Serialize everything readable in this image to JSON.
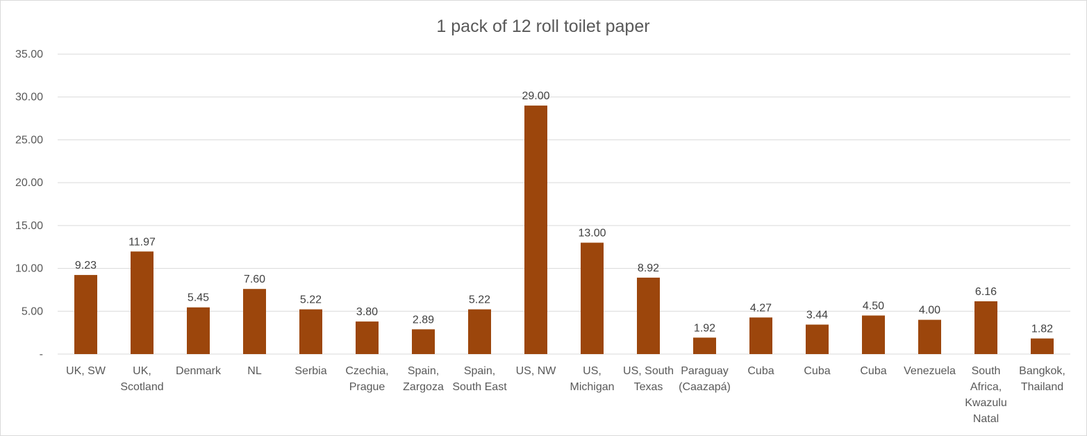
{
  "chart_data": {
    "type": "bar",
    "title": "1 pack of 12 roll toilet paper",
    "xlabel": "",
    "ylabel": "",
    "ylim": [
      0,
      35
    ],
    "yticks": [
      0,
      5,
      10,
      15,
      20,
      25,
      30,
      35
    ],
    "ytick_labels": [
      "-",
      "5.00",
      "10.00",
      "15.00",
      "20.00",
      "25.00",
      "30.00",
      "35.00"
    ],
    "grid": true,
    "legend": "none",
    "bar_color": "#9c460c",
    "categories": [
      [
        "UK, SW"
      ],
      [
        "UK,",
        "Scotland"
      ],
      [
        "Denmark"
      ],
      [
        "NL"
      ],
      [
        "Serbia"
      ],
      [
        "Czechia,",
        "Prague"
      ],
      [
        "Spain,",
        "Zargoza"
      ],
      [
        "Spain,",
        "South East"
      ],
      [
        "US, NW"
      ],
      [
        "US,",
        "Michigan"
      ],
      [
        "US, South",
        "Texas"
      ],
      [
        "Paraguay",
        "(Caazapá)"
      ],
      [
        "Cuba"
      ],
      [
        "Cuba"
      ],
      [
        "Cuba"
      ],
      [
        "Venezuela"
      ],
      [
        "South",
        "Africa,",
        "Kwazulu",
        "Natal"
      ],
      [
        "Bangkok,",
        "Thailand"
      ]
    ],
    "values": [
      9.23,
      11.97,
      5.45,
      7.6,
      5.22,
      3.8,
      2.89,
      5.22,
      29.0,
      13.0,
      8.92,
      1.92,
      4.27,
      3.44,
      4.5,
      4.0,
      6.16,
      1.82
    ],
    "data_labels": [
      "9.23",
      "11.97",
      "5.45",
      "7.60",
      "5.22",
      "3.80",
      "2.89",
      "5.22",
      "29.00",
      "13.00",
      "8.92",
      "1.92",
      "4.27",
      "3.44",
      "4.50",
      "4.00",
      "6.16",
      "1.82"
    ]
  }
}
